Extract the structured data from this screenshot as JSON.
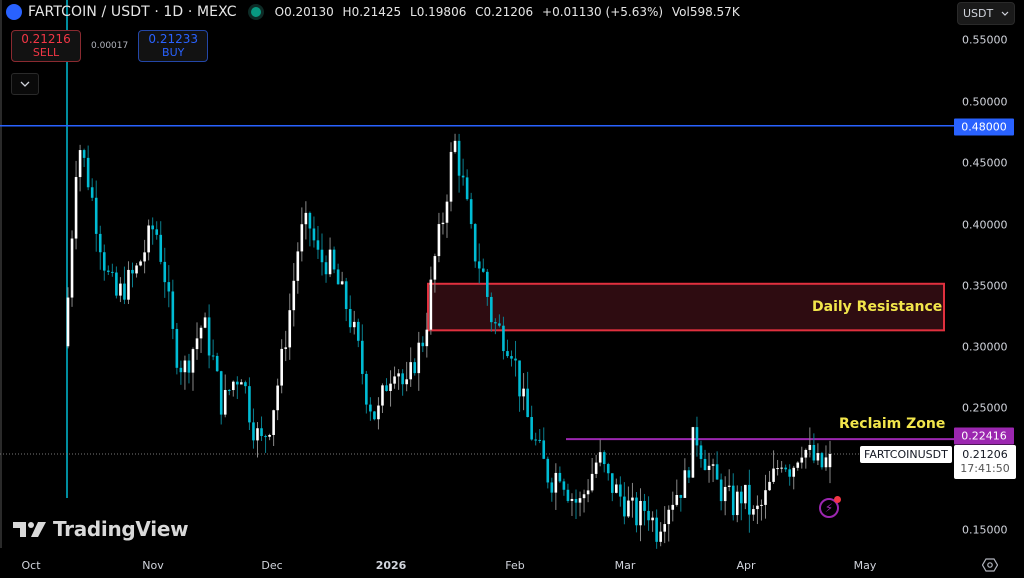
{
  "header": {
    "symbol": "FARTCOIN / USDT · 1D · MEXC",
    "open": "O0.20130",
    "high": "H0.21425",
    "low": "L0.19806",
    "close": "C0.21206",
    "change": "+0.01130 (+5.63%)",
    "volume": "Vol598.57K"
  },
  "trade": {
    "sell_price": "0.21216",
    "sell_label": "SELL",
    "spread": "0.00017",
    "buy_price": "0.21233",
    "buy_label": "BUY",
    "collapse_icon": "chevron-down-icon"
  },
  "currency_selector": {
    "value": "USDT"
  },
  "colors": {
    "background": "#000000",
    "bull_candle": "#ffffff",
    "bear_candle": "#00bcd4",
    "level_line": "#2962ff",
    "reclaim_line": "#9c27b0",
    "resistance_border": "#e0303e",
    "resistance_fill": "#2e0c11",
    "annotation_text": "#f2e64b"
  },
  "annotations": {
    "daily_resistance": "Daily Resistance",
    "reclaim_zone": "Reclaim Zone"
  },
  "badges": {
    "level_048": "0.48000",
    "reclaim": "0.22416",
    "symbol_tag": "FARTCOINUSDT",
    "last_price": "0.21206",
    "countdown": "17:41:50"
  },
  "branding": {
    "logo_text": "TradingView"
  },
  "chart_data": {
    "type": "candlestick",
    "title": "FARTCOIN / USDT · 1D · MEXC",
    "xlabel": "",
    "ylabel": "USDT",
    "ylim": [
      0.13,
      0.57
    ],
    "y_ticks": [
      "0.55000",
      "0.50000",
      "0.45000",
      "0.40000",
      "0.35000",
      "0.30000",
      "0.25000",
      "0.15000"
    ],
    "x_ticks": [
      "Oct",
      "Nov",
      "Dec",
      "2026",
      "Feb",
      "Mar",
      "Apr",
      "May"
    ],
    "grid": false,
    "horizontal_lines": [
      {
        "label": "0.48000",
        "value": 0.48,
        "color": "#2962ff"
      },
      {
        "label": "Reclaim Zone",
        "value": 0.22416,
        "color": "#9c27b0"
      }
    ],
    "zones": [
      {
        "label": "Daily Resistance",
        "from": 0.313,
        "to": 0.351
      }
    ],
    "last_price": 0.21206,
    "ohlc_last": {
      "open": 0.2013,
      "high": 0.21425,
      "low": 0.19806,
      "close": 0.21206,
      "change": 0.0113,
      "change_pct": 5.63,
      "volume": "598.57K"
    },
    "price_path_close": [
      0.34,
      0.47,
      0.44,
      0.4,
      0.36,
      0.34,
      0.35,
      0.36,
      0.38,
      0.4,
      0.36,
      0.3,
      0.28,
      0.3,
      0.32,
      0.29,
      0.25,
      0.27,
      0.28,
      0.24,
      0.22,
      0.24,
      0.28,
      0.33,
      0.39,
      0.4,
      0.37,
      0.37,
      0.35,
      0.33,
      0.3,
      0.26,
      0.24,
      0.27,
      0.29,
      0.26,
      0.29,
      0.31,
      0.37,
      0.41,
      0.47,
      0.43,
      0.38,
      0.36,
      0.32,
      0.31,
      0.3,
      0.26,
      0.23,
      0.21,
      0.19,
      0.2,
      0.18,
      0.17,
      0.19,
      0.21,
      0.19,
      0.18,
      0.17,
      0.16,
      0.17,
      0.15,
      0.17,
      0.18,
      0.19,
      0.23,
      0.21,
      0.19,
      0.18,
      0.17,
      0.18,
      0.16,
      0.17,
      0.19,
      0.21,
      0.2,
      0.22,
      0.21,
      0.2,
      0.21
    ]
  }
}
